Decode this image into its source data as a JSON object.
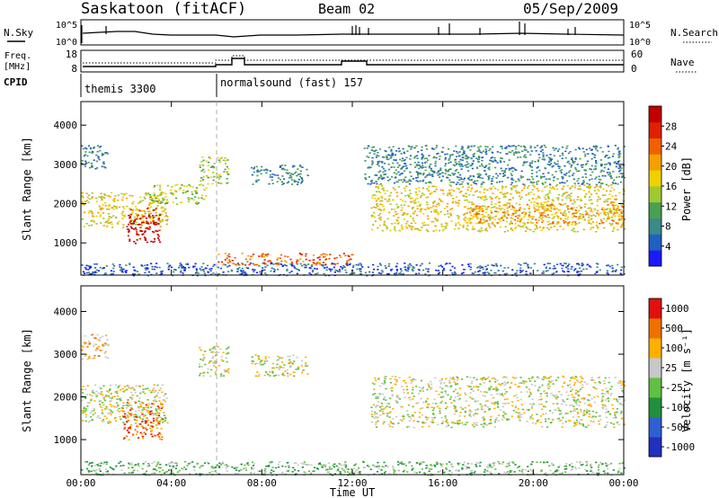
{
  "header": {
    "station": "Saskatoon (fitACF)",
    "beam": "Beam 02",
    "date": "05/Sep/2009"
  },
  "noise_panel": {
    "left_label": "N.Sky",
    "right_label": "N.Search",
    "left_ticks": [
      "10^5",
      "10^0"
    ],
    "right_ticks": [
      "10^5",
      "10^0"
    ]
  },
  "freq_panel": {
    "left_label_1": "Freq.",
    "left_label_2": "[MHz]",
    "right_label": "Nave",
    "left_ticks": [
      "18",
      "8"
    ],
    "right_ticks": [
      "60",
      "0"
    ]
  },
  "cpid": {
    "label": "CPID",
    "programs": [
      {
        "name": "themis 3300",
        "start_hour": 0
      },
      {
        "name": "normalsound (fast) 157",
        "start_hour": 6
      }
    ]
  },
  "time_axis": {
    "label": "Time UT",
    "ticks": [
      "00:00",
      "04:00",
      "08:00",
      "12:00",
      "16:00",
      "20:00",
      "00:00"
    ]
  },
  "chart_data": [
    {
      "type": "heatmap",
      "title": "Power [dB]",
      "xlabel": "Time UT",
      "ylabel": "Slant Range [km]",
      "xlim_hours": [
        0,
        24
      ],
      "ylim": [
        180,
        4600
      ],
      "yticks": [
        1000,
        2000,
        3000,
        4000
      ],
      "colorbar": {
        "label": "Power [dB]",
        "ticks": [
          "4",
          "8",
          "12",
          "16",
          "20",
          "24",
          "28"
        ],
        "colors": [
          "#1a1aff",
          "#2060c0",
          "#3a8a8a",
          "#4aa050",
          "#a0c830",
          "#f0d000",
          "#f5a000",
          "#f06000",
          "#e02000",
          "#c00000"
        ]
      },
      "regions": [
        {
          "t": [
            0.0,
            3.8
          ],
          "r": [
            1400,
            2300
          ],
          "level": 5
        },
        {
          "t": [
            2.0,
            3.5
          ],
          "r": [
            1000,
            1900
          ],
          "level": 9
        },
        {
          "t": [
            3.0,
            5.5
          ],
          "r": [
            2000,
            2500
          ],
          "level": 4
        },
        {
          "t": [
            0.0,
            1.2
          ],
          "r": [
            2900,
            3500
          ],
          "level": 2
        },
        {
          "t": [
            5.2,
            6.5
          ],
          "r": [
            2500,
            3200
          ],
          "level": 4
        },
        {
          "t": [
            7.5,
            10.0
          ],
          "r": [
            2500,
            3000
          ],
          "level": 2
        },
        {
          "t": [
            6.0,
            12.0
          ],
          "r": [
            450,
            750
          ],
          "level": 7
        },
        {
          "t": [
            12.8,
            24.0
          ],
          "r": [
            1300,
            2500
          ],
          "level": 5
        },
        {
          "t": [
            17.0,
            24.0
          ],
          "r": [
            1500,
            2000
          ],
          "level": 6
        },
        {
          "t": [
            12.5,
            24.0
          ],
          "r": [
            2500,
            3500
          ],
          "level": 2
        },
        {
          "t": [
            0.0,
            24.0
          ],
          "r": [
            180,
            500
          ],
          "level": 1
        }
      ]
    },
    {
      "type": "heatmap",
      "title": "Velocity [m s^-1]",
      "xlabel": "Time UT",
      "ylabel": "Slant Range [km]",
      "xlim_hours": [
        0,
        24
      ],
      "ylim": [
        180,
        4600
      ],
      "yticks": [
        1000,
        2000,
        3000,
        4000
      ],
      "colorbar": {
        "label": "Velocity [m s⁻¹]",
        "ticks": [
          "1000",
          "500",
          "100",
          "25",
          "-25",
          "-100",
          "-500",
          "-1000"
        ],
        "colors": [
          "#2030c0",
          "#3060d0",
          "#209040",
          "#60c040",
          "#c8c8c8",
          "#ffb000",
          "#f07000",
          "#e01010"
        ]
      },
      "regions": [
        {
          "t": [
            0.0,
            3.8
          ],
          "r": [
            1400,
            2300
          ],
          "level": 4
        },
        {
          "t": [
            1.8,
            3.6
          ],
          "r": [
            1000,
            1900
          ],
          "level": 6
        },
        {
          "t": [
            0.0,
            1.2
          ],
          "r": [
            2900,
            3500
          ],
          "level": 5
        },
        {
          "t": [
            5.2,
            6.5
          ],
          "r": [
            2500,
            3200
          ],
          "level": 4
        },
        {
          "t": [
            7.5,
            10.0
          ],
          "r": [
            2500,
            3000
          ],
          "level": 4
        },
        {
          "t": [
            12.8,
            24.0
          ],
          "r": [
            1300,
            2500
          ],
          "level": 4
        },
        {
          "t": [
            0.0,
            24.0
          ],
          "r": [
            180,
            500
          ],
          "level": 3
        }
      ]
    }
  ]
}
